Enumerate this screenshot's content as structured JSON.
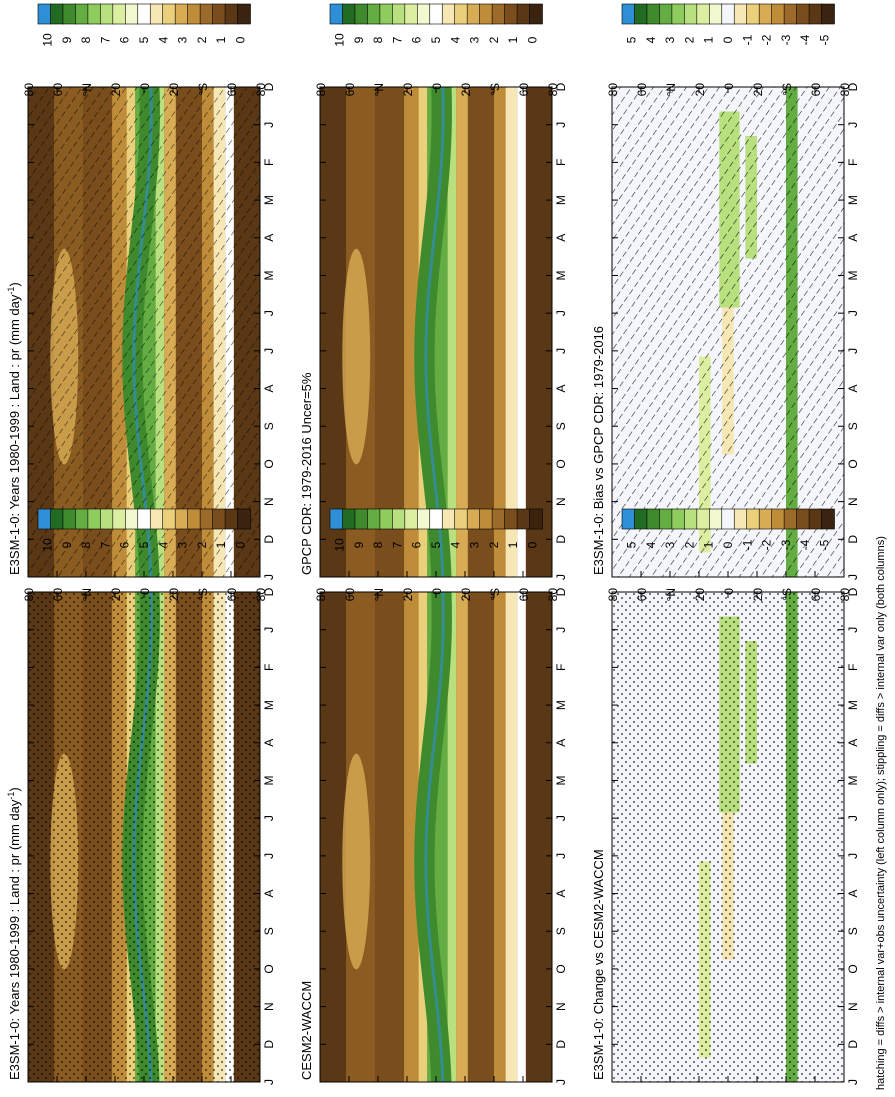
{
  "footnote": "hatching = diffs > internal var+obs uncertainty (left column only); stippling = diffs > internal var only (both columns)",
  "months": [
    "D",
    "J",
    "F",
    "M",
    "A",
    "M",
    "J",
    "J",
    "A",
    "S",
    "O",
    "N",
    "D",
    "J"
  ],
  "lat_ticks": [
    "80",
    "60",
    "°N",
    "20",
    "0",
    "20",
    "°S",
    "60",
    "80"
  ],
  "palette": {
    "abs": [
      "#3a2410",
      "#5a3815",
      "#7a4d1c",
      "#9c6a2b",
      "#bf8c3a",
      "#d8ac55",
      "#ead07a",
      "#f6e7b4",
      "#ffffff",
      "#f2f8d0",
      "#dcefa0",
      "#b9e07e",
      "#8fcc5e",
      "#63ad43",
      "#3f8a2c",
      "#226b23",
      "#2e8fd6"
    ],
    "diff": [
      "#3a2410",
      "#5a3815",
      "#7a4d1c",
      "#9c6a2b",
      "#bf8c3a",
      "#d8ac55",
      "#ead07a",
      "#f6e7b4",
      "#f4f6fb",
      "#f2f8d0",
      "#dcefa0",
      "#b9e07e",
      "#8fcc5e",
      "#63ad43",
      "#3f8a2c",
      "#226b23",
      "#2e8fd6"
    ]
  },
  "colorbars": {
    "abs": [
      "10",
      "9",
      "8",
      "7",
      "6",
      "5",
      "4",
      "3",
      "2",
      "1",
      "0"
    ],
    "diff": [
      "5",
      "4",
      "3",
      "2",
      "1",
      "0",
      "-1",
      "-2",
      "-3",
      "-4",
      "-5"
    ]
  },
  "chart_data": [
    {
      "type": "heatmap",
      "title": "E3SM-1-0: Years 1980-1999 : Land : pr (mm day",
      "title_sup": "-1",
      "title_end": ")",
      "xlabel": "",
      "ylabel": "",
      "x": [
        "D",
        "J",
        "F",
        "M",
        "A",
        "M",
        "J",
        "J",
        "A",
        "S",
        "O",
        "N",
        "D",
        "J"
      ],
      "y": [
        "80",
        "60",
        "°N",
        "20",
        "0",
        "20",
        "°S",
        "60",
        "80"
      ],
      "colorbar": "abs",
      "overlay": "hatching"
    },
    {
      "type": "heatmap",
      "title": "E3SM-1-0: Years 1980-1999 : Land : pr (mm day",
      "title_sup": "-1",
      "title_end": ")",
      "xlabel": "",
      "ylabel": "",
      "x": [
        "D",
        "J",
        "F",
        "M",
        "A",
        "M",
        "J",
        "J",
        "A",
        "S",
        "O",
        "N",
        "D",
        "J"
      ],
      "y": [
        "80",
        "60",
        "°N",
        "20",
        "0",
        "20",
        "°S",
        "60",
        "80"
      ],
      "colorbar": "abs",
      "overlay": "stippling"
    },
    {
      "type": "heatmap",
      "title": "GPCP CDR: 1979-2016 Uncer=5%",
      "xlabel": "",
      "ylabel": "",
      "x": [
        "D",
        "J",
        "F",
        "M",
        "A",
        "M",
        "J",
        "J",
        "A",
        "S",
        "O",
        "N",
        "D",
        "J"
      ],
      "y": [
        "80",
        "60",
        "°N",
        "20",
        "0",
        "20",
        "°S",
        "60",
        "80"
      ],
      "colorbar": "abs",
      "overlay": "none"
    },
    {
      "type": "heatmap",
      "title": "CESM2-WACCM",
      "xlabel": "",
      "ylabel": "",
      "x": [
        "D",
        "J",
        "F",
        "M",
        "A",
        "M",
        "J",
        "J",
        "A",
        "S",
        "O",
        "N",
        "D",
        "J"
      ],
      "y": [
        "80",
        "60",
        "°N",
        "20",
        "0",
        "20",
        "°S",
        "60",
        "80"
      ],
      "colorbar": "abs",
      "overlay": "none"
    },
    {
      "type": "heatmap",
      "title": "E3SM-1-0: Bias vs GPCP CDR: 1979-2016",
      "xlabel": "",
      "ylabel": "",
      "x": [
        "D",
        "J",
        "F",
        "M",
        "A",
        "M",
        "J",
        "J",
        "A",
        "S",
        "O",
        "N",
        "D",
        "J"
      ],
      "y": [
        "80",
        "60",
        "°N",
        "20",
        "0",
        "20",
        "°S",
        "60",
        "80"
      ],
      "colorbar": "diff",
      "overlay": "hatching"
    },
    {
      "type": "heatmap",
      "title": "E3SM-1-0: Change vs CESM2-WACCM",
      "xlabel": "",
      "ylabel": "",
      "x": [
        "D",
        "J",
        "F",
        "M",
        "A",
        "M",
        "J",
        "J",
        "A",
        "S",
        "O",
        "N",
        "D",
        "J"
      ],
      "y": [
        "80",
        "60",
        "°N",
        "20",
        "0",
        "20",
        "°S",
        "60",
        "80"
      ],
      "colorbar": "diff",
      "overlay": "stippling"
    }
  ]
}
